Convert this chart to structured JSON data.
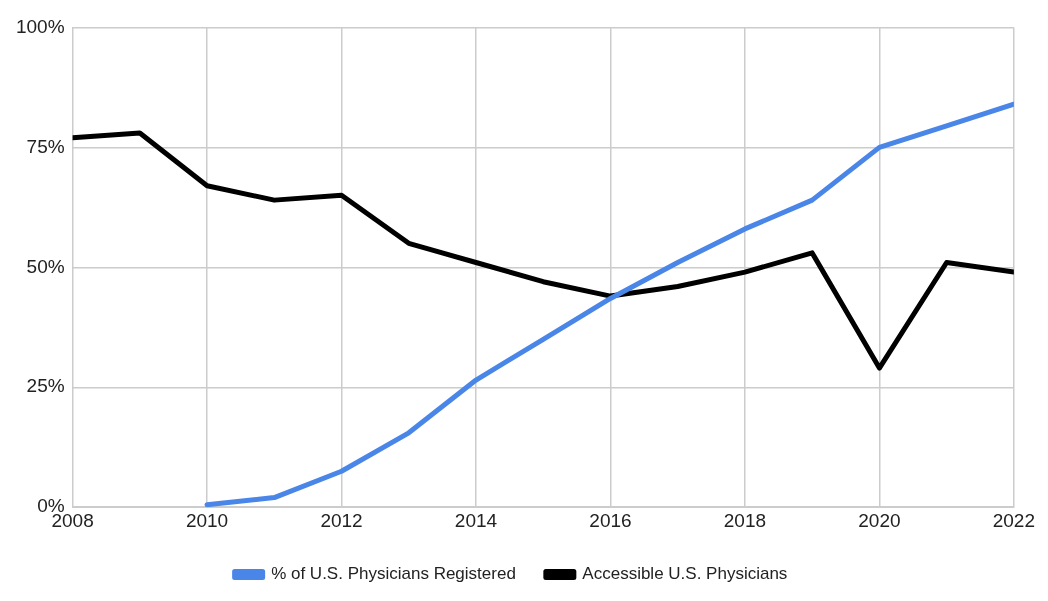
{
  "chart_data": {
    "type": "line",
    "x": [
      2008,
      2009,
      2010,
      2011,
      2012,
      2013,
      2014,
      2015,
      2016,
      2017,
      2018,
      2019,
      2020,
      2021,
      2022
    ],
    "series": [
      {
        "name": "% of U.S. Physicians Registered",
        "color": "#4a86e8",
        "values": [
          null,
          null,
          0.5,
          2,
          7.5,
          15.5,
          26.5,
          35,
          43.5,
          51,
          58,
          64,
          75,
          79.5,
          84
        ]
      },
      {
        "name": "Accessible U.S. Physicians",
        "color": "#000000",
        "values": [
          77,
          78,
          67,
          64,
          65,
          55,
          51,
          47,
          44,
          46,
          49,
          53,
          29,
          51,
          49
        ]
      }
    ],
    "xlim": [
      2008,
      2022
    ],
    "xticks": [
      2008,
      2010,
      2012,
      2014,
      2016,
      2018,
      2020,
      2022
    ],
    "ylim": [
      0,
      100
    ],
    "yticks": [
      {
        "value": 0,
        "label": "0%"
      },
      {
        "value": 25,
        "label": "25%"
      },
      {
        "value": 50,
        "label": "50%"
      },
      {
        "value": 75,
        "label": "75%"
      },
      {
        "value": 100,
        "label": "100%"
      }
    ],
    "grid": true,
    "legend": "bottom",
    "marker": "none",
    "line_style": "solid"
  }
}
